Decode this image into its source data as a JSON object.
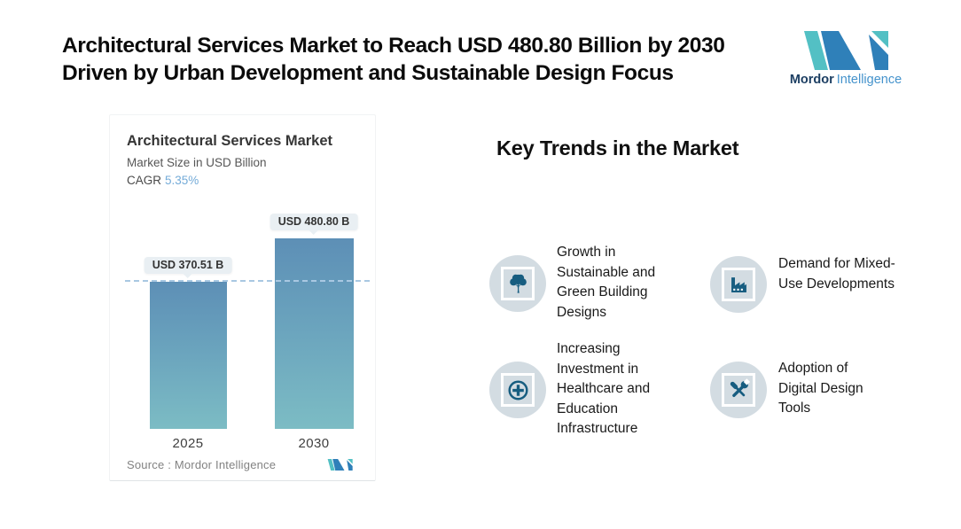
{
  "header": {
    "title_line1": "Architectural Services Market to Reach USD 480.80 Billion by 2030",
    "title_line2": "Driven by Urban Development and Sustainable Design Focus",
    "brand": {
      "name_bold": "Mordor",
      "name_light": "Intelligence"
    }
  },
  "chart_card": {
    "title": "Architectural Services Market",
    "subtitle": "Market Size in USD Billion",
    "cagr_label": "CAGR",
    "cagr_value": "5.35%",
    "source": "Source :  Mordor Intelligence"
  },
  "chart_data": {
    "type": "bar",
    "title": "Architectural Services Market",
    "ylabel": "Market Size in USD Billion",
    "unit": "USD Billion",
    "cagr_percent": 5.35,
    "categories": [
      "2025",
      "2030"
    ],
    "values": [
      370.51,
      480.8
    ],
    "bar_labels": [
      "USD 370.51 B",
      "USD 480.80 B"
    ],
    "reference_line": {
      "at_value": 370.51,
      "style": "dashed"
    },
    "ylim": [
      0,
      481
    ],
    "grid": false,
    "legend": false,
    "colors": {
      "bar_gradient_top": "#5d8fb6",
      "bar_gradient_bottom": "#7cbcc4",
      "dashed_line": "#a9c8e2",
      "label_pill_bg": "#e9eff3",
      "cagr_value_text": "#74abd8"
    }
  },
  "trends": {
    "heading": "Key Trends in the Market",
    "items": [
      {
        "icon": "tree-icon",
        "label": "Growth in Sustainable and Green Building Designs"
      },
      {
        "icon": "factory-icon",
        "label": "Demand for Mixed-Use Developments"
      },
      {
        "icon": "medical-cross-icon",
        "label": "Increasing Investment in Healthcare and Education Infrastructure"
      },
      {
        "icon": "tools-icon",
        "label": "Adoption of Digital Design Tools"
      }
    ],
    "icon_style": {
      "circle_bg": "#d3dce2",
      "glyph_color": "#175d80"
    }
  },
  "brand_colors": {
    "teal": "#53c0c4",
    "blue": "#2f80b9"
  }
}
